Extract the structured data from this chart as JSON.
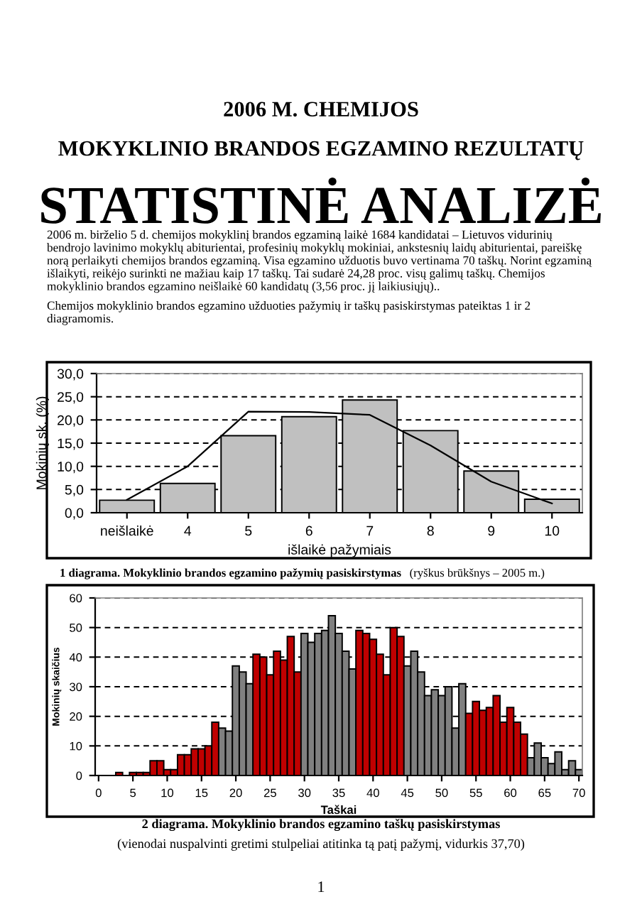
{
  "chart_data": [
    {
      "type": "bar",
      "title": "2006 M. CHEMIJOS\nMOKYKLINIO BRANDOS EGZAMINO REZULTATŲ",
      "subtitle": "STATISTINĖ ANALIZĖ",
      "annotations": [
        "2006 m. birželio 5 d. chemijos mokyklinį brandos egzaminą laikė 1684 kandidatai – Lietuvos vidurinių bendrojo lavinimo mokyklų abiturientai, profesinių mokyklų mokiniai, ankstesnių laidų abiturientai, pareiškę norą perlaikyti chemijos brandos egzaminą. Visa egzamino užduotis buvo vertinama 70 taškų. Norint egzaminą išlaikyti, reikėjo surinkti ne mažiau kaip 17 taškų. Tai sudarė 24,28 proc. visų galimų taškų. Chemijos mokyklinio brandos egzamino neišlaikė 60 kandidatų (3,56 proc. jį laikiusiųjų)..",
        "Chemijos mokyklinio brandos egzamino užduoties pažymių ir taškų pasiskirstymas pateiktas 1 ir 2 diagramomis.",
        "1 diagrama. Mokyklinio brandos egzamino pažymių pasiskirstymas",
        "(ryškus brūkšnys – 2005 m.)"
      ],
      "xlabel": "išlaikė pažymiais",
      "ylabel": "Mokinių sk. (%)",
      "categories": [
        "neišlaikė",
        "4",
        "5",
        "6",
        "7",
        "8",
        "9",
        "10"
      ],
      "series": [
        {
          "type": "bar",
          "color": "#c0c0c0",
          "values": [
            2.7,
            6.3,
            16.6,
            20.7,
            24.3,
            17.7,
            9.0,
            2.9
          ]
        },
        {
          "type": "line",
          "color": "#000000",
          "values": [
            2.8,
            10.0,
            21.8,
            21.7,
            21.1,
            14.5,
            6.7,
            2.0
          ]
        }
      ],
      "ylim": [
        0,
        30
      ],
      "yticks": [
        {
          "value": 0,
          "label": "0,0"
        },
        {
          "value": 5,
          "label": "5,0"
        },
        {
          "value": 10,
          "label": "10,0"
        },
        {
          "value": 15,
          "label": "15,0"
        },
        {
          "value": 20,
          "label": "20,0"
        },
        {
          "value": 25,
          "label": "25,0"
        },
        {
          "value": 30,
          "label": "30,0"
        }
      ],
      "grid": "y"
    },
    {
      "type": "bar",
      "annotations": [
        "2 diagrama. Mokyklinio brandos egzamino taškų pasiskirstymas",
        "(vienodai nuspalvinti gretimi stulpeliai atitinka tą patį pažymį, vidurkis 37,70)",
        "1"
      ],
      "xlabel": "Taškai",
      "ylabel": "Mokinių skaičius",
      "x": [
        0,
        1,
        2,
        3,
        4,
        5,
        6,
        7,
        8,
        9,
        10,
        11,
        12,
        13,
        14,
        15,
        16,
        17,
        18,
        19,
        20,
        21,
        22,
        23,
        24,
        25,
        26,
        27,
        28,
        29,
        30,
        31,
        32,
        33,
        34,
        35,
        36,
        37,
        38,
        39,
        40,
        41,
        42,
        43,
        44,
        45,
        46,
        47,
        48,
        49,
        50,
        51,
        52,
        53,
        54,
        55,
        56,
        57,
        58,
        59,
        60,
        61,
        62,
        63,
        64,
        65,
        66,
        67,
        68,
        69,
        70
      ],
      "values": [
        0,
        0,
        0,
        1,
        0,
        1,
        1,
        1,
        5,
        5,
        2,
        2,
        7,
        7,
        9,
        9,
        10,
        18,
        16,
        15,
        37,
        35,
        31,
        41,
        40,
        34,
        42,
        39,
        47,
        35,
        48,
        45,
        48,
        49,
        54,
        48,
        42,
        36,
        49,
        48,
        46,
        41,
        34,
        50,
        47,
        37,
        42,
        35,
        27,
        29,
        27,
        30,
        16,
        31,
        21,
        25,
        22,
        23,
        27,
        18,
        23,
        18,
        14,
        6,
        11,
        6,
        4,
        8,
        2,
        5,
        2
      ],
      "colors": [
        "#c00000",
        "#c00000",
        "#c00000",
        "#c00000",
        "#c00000",
        "#c00000",
        "#c00000",
        "#c00000",
        "#c00000",
        "#c00000",
        "#c00000",
        "#c00000",
        "#c00000",
        "#c00000",
        "#c00000",
        "#c00000",
        "#c00000",
        "#c00000",
        "#808080",
        "#808080",
        "#808080",
        "#808080",
        "#808080",
        "#c00000",
        "#c00000",
        "#c00000",
        "#c00000",
        "#c00000",
        "#c00000",
        "#c00000",
        "#808080",
        "#808080",
        "#808080",
        "#808080",
        "#808080",
        "#808080",
        "#808080",
        "#808080",
        "#c00000",
        "#c00000",
        "#c00000",
        "#c00000",
        "#c00000",
        "#c00000",
        "#c00000",
        "#808080",
        "#808080",
        "#808080",
        "#808080",
        "#808080",
        "#808080",
        "#808080",
        "#808080",
        "#808080",
        "#c00000",
        "#c00000",
        "#c00000",
        "#c00000",
        "#c00000",
        "#c00000",
        "#c00000",
        "#c00000",
        "#c00000",
        "#808080",
        "#808080",
        "#808080",
        "#808080",
        "#808080",
        "#808080",
        "#808080",
        "#808080"
      ],
      "xlim": [
        -0.5,
        70.5
      ],
      "xticks": [
        0,
        5,
        10,
        15,
        20,
        25,
        30,
        35,
        40,
        45,
        50,
        55,
        60,
        65,
        70
      ],
      "ylim": [
        0,
        60
      ],
      "yticks": [
        0,
        10,
        20,
        30,
        40,
        50,
        60
      ],
      "grid": "y"
    }
  ]
}
